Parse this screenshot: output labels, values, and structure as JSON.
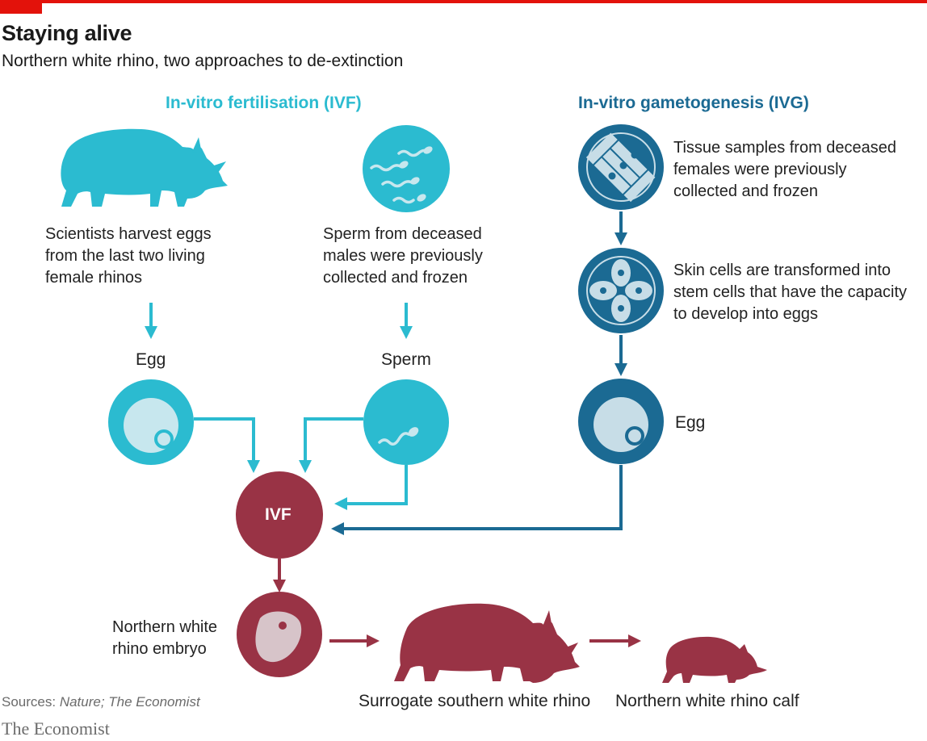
{
  "header": {
    "title": "Staying alive",
    "subtitle": "Northern white rhino, two approaches to de-extinction"
  },
  "colors": {
    "ivf_cyan": "#2bbbd0",
    "ivg_blue": "#1b6a93",
    "result_red": "#993345",
    "pale": "#c7e7ee",
    "accent_red": "#e3120b"
  },
  "ivf": {
    "heading": "In-vitro fertilisation (IVF)",
    "harvest_text": "Scientists harvest eggs\nfrom the last two living\nfemale rhinos",
    "sperm_text": "Sperm from deceased\nmales were previously\ncollected and frozen",
    "egg_label": "Egg",
    "sperm_label": "Sperm"
  },
  "ivg": {
    "heading": "In-vitro gametogenesis (IVG)",
    "tissue_text": "Tissue samples from deceased\nfemales were previously\ncollected and frozen",
    "stem_text": "Skin cells are transformed into\nstem cells that have the capacity\nto develop into eggs",
    "egg_label": "Egg"
  },
  "result": {
    "ivf_node": "IVF",
    "embryo_label": "Northern white\nrhino embryo",
    "surrogate_label": "Surrogate southern white rhino",
    "calf_label": "Northern white rhino calf"
  },
  "footer": {
    "sources_prefix": "Sources: ",
    "sources_italic": "Nature; The Economist",
    "brand": "The Economist"
  }
}
